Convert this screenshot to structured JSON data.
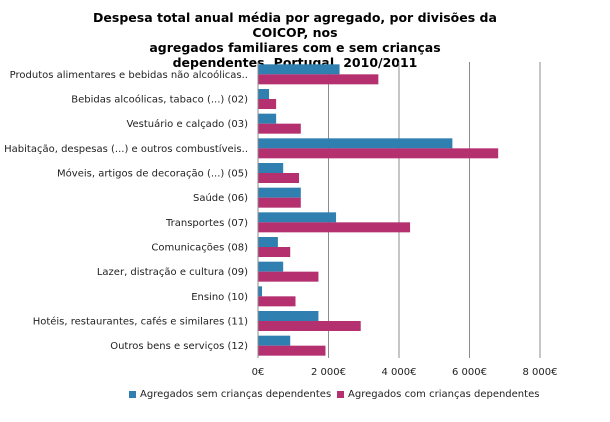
{
  "chart_data": {
    "type": "bar",
    "orientation": "horizontal",
    "title": "Despesa total anual média por agregado, por divisões da COICOP, nos\nagregados familiares com e sem crianças\ndependentes, Portugal, 2010/2011",
    "categories": [
      "Produtos alimentares e bebidas não alcoólicas..",
      "Bebidas alcoólicas, tabaco (...) (02)",
      "Vestuário e calçado (03)",
      "Habitação, despesas (...) e outros combustíveis..",
      "Móveis, artigos de decoração (...) (05)",
      "Saúde (06)",
      "Transportes (07)",
      "Comunicações (08)",
      "Lazer, distração e cultura (09)",
      "Ensino (10)",
      "Hotéis, restaurantes, cafés e similares (11)",
      "Outros bens e serviços (12)"
    ],
    "series": [
      {
        "name": "Agregados sem crianças dependentes",
        "color": "#2f7fb0",
        "values": [
          2300,
          300,
          500,
          5500,
          700,
          1200,
          2200,
          550,
          700,
          100,
          1700,
          900
        ]
      },
      {
        "name": "Agregados com crianças dependentes",
        "color": "#b5306f",
        "values": [
          3400,
          500,
          1200,
          6800,
          1150,
          1200,
          4300,
          900,
          1700,
          1050,
          2900,
          1900
        ]
      }
    ],
    "xlim": [
      0,
      8000
    ],
    "xticks": [
      0,
      2000,
      4000,
      6000,
      8000
    ],
    "xtick_labels": [
      "0€",
      "2 000€",
      "4 000€",
      "6 000€",
      "8 000€"
    ],
    "grid": true,
    "legend_position": "bottom"
  }
}
